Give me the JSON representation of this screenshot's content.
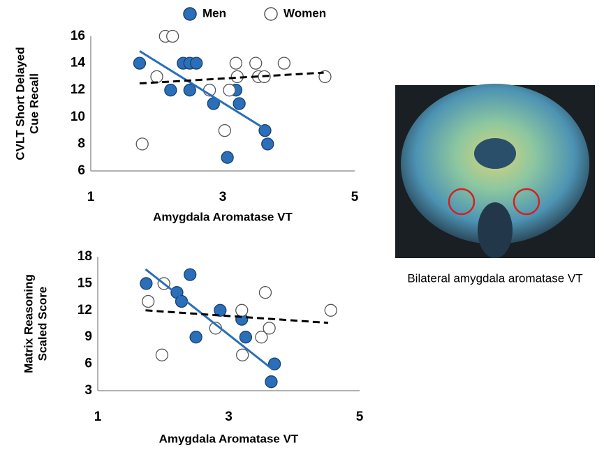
{
  "chart_data": [
    {
      "type": "scatter",
      "xlabel": "Amygdala Aromatase VT",
      "ylabel": [
        "CVLT Short Delayed",
        "Cue Recall"
      ],
      "xlim": [
        1,
        5
      ],
      "xticks": [
        1,
        3,
        5
      ],
      "ylim": [
        6,
        16
      ],
      "yticks": [
        6,
        8,
        10,
        12,
        14,
        16
      ],
      "legend": true,
      "series": [
        {
          "name": "Men",
          "color": "#2a6fb8",
          "edgecolor": "#1a3f73",
          "x": [
            1.74,
            2.21,
            2.4,
            2.5,
            2.6,
            2.5,
            2.86,
            3.2,
            3.25,
            3.07,
            3.64,
            3.68
          ],
          "values": [
            14,
            12,
            14,
            14,
            14,
            12,
            11,
            12,
            11,
            7,
            9,
            8
          ],
          "trend": {
            "x": [
              1.74,
              3.68
            ],
            "y": [
              14.9,
              9
            ],
            "color": "#2a6fb8",
            "dashed": false
          }
        },
        {
          "name": "Women",
          "color": "#ffffff",
          "edgecolor": "#555555",
          "x": [
            1.78,
            2.0,
            2.13,
            2.24,
            2.8,
            3.03,
            3.1,
            3.2,
            3.22,
            3.5,
            3.54,
            3.63,
            3.93,
            4.55
          ],
          "values": [
            8,
            13,
            16,
            16,
            12,
            9,
            12,
            14,
            13,
            14,
            13,
            13,
            14,
            13
          ],
          "trend": {
            "x": [
              1.74,
              4.53
            ],
            "y": [
              12.5,
              13.3
            ],
            "color": "#000000",
            "dashed": true
          }
        }
      ]
    },
    {
      "type": "scatter",
      "xlabel": "Amygdala Aromatase VT",
      "ylabel": [
        "Matrix Reasoning",
        "Scaled Score"
      ],
      "xlim": [
        1,
        5
      ],
      "xticks": [
        1,
        3,
        5
      ],
      "ylim": [
        3,
        18
      ],
      "yticks": [
        3,
        6,
        9,
        12,
        15,
        18
      ],
      "legend": false,
      "series": [
        {
          "name": "Men",
          "color": "#2a6fb8",
          "edgecolor": "#1a3f73",
          "x": [
            1.74,
            2.21,
            2.41,
            2.28,
            2.87,
            2.5,
            3.2,
            3.26,
            3.7,
            3.65
          ],
          "values": [
            15,
            14,
            16,
            13,
            12,
            9,
            11,
            9,
            6,
            4
          ],
          "trend": {
            "x": [
              1.73,
              3.67
            ],
            "y": [
              16.6,
              5.4
            ],
            "color": "#2a6fb8",
            "dashed": false
          }
        },
        {
          "name": "Women",
          "color": "#ffffff",
          "edgecolor": "#555555",
          "x": [
            1.77,
            1.98,
            2.01,
            2.8,
            3.2,
            3.21,
            3.5,
            3.56,
            3.62,
            4.56
          ],
          "values": [
            13,
            7,
            15,
            10,
            12,
            7,
            9,
            14,
            10,
            12
          ],
          "trend": {
            "x": [
              1.73,
              4.52
            ],
            "y": [
              12,
              10.6
            ],
            "color": "#000000",
            "dashed": true
          }
        }
      ]
    }
  ],
  "image": {
    "caption": "Bilateral amygdala aromatase VT"
  }
}
